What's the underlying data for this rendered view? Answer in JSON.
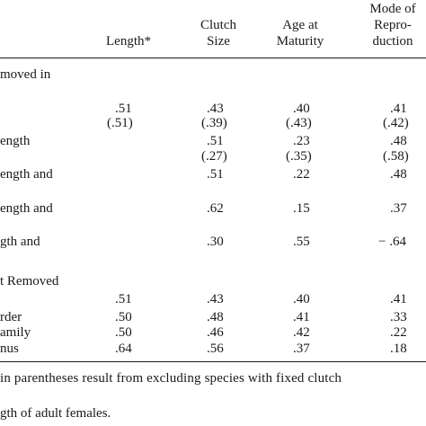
{
  "headers": {
    "length": "Length*",
    "clutch": [
      "Clutch",
      "Size"
    ],
    "age": [
      "Age at",
      "Maturity"
    ],
    "mode": [
      "Mode of",
      "Repro-",
      "duction"
    ]
  },
  "section1": {
    "title": "moved in",
    "rows": [
      {
        "label": "",
        "length": ".51",
        "clutch": ".43",
        "age": ".40",
        "mode": ".41"
      },
      {
        "label": "",
        "length": "(.51)",
        "clutch": "(.39)",
        "age": "(.43)",
        "mode": "(.42)"
      },
      {
        "label": "ength",
        "length": "",
        "clutch": ".51",
        "age": ".23",
        "mode": ".48"
      },
      {
        "label": "",
        "length": "",
        "clutch": "(.27)",
        "age": "(.35)",
        "mode": "(.58)"
      },
      {
        "label": "ength and",
        "length": "",
        "clutch": ".51",
        "age": ".22",
        "mode": ".48"
      },
      {
        "label": "ength and",
        "length": "",
        "clutch": ".62",
        "age": ".15",
        "mode": ".37"
      },
      {
        "label": "gth and",
        "length": "",
        "clutch": ".30",
        "age": ".55",
        "mode": "− .64"
      }
    ]
  },
  "section2": {
    "title": "t Removed",
    "rows": [
      {
        "label": "",
        "length": ".51",
        "clutch": ".43",
        "age": ".40",
        "mode": ".41"
      },
      {
        "label": "rder",
        "length": ".50",
        "clutch": ".48",
        "age": ".41",
        "mode": ".33"
      },
      {
        "label": "amily",
        "length": ".50",
        "clutch": ".46",
        "age": ".42",
        "mode": ".22"
      },
      {
        "label": "nus",
        "length": ".64",
        "clutch": ".56",
        "age": ".37",
        "mode": ".18"
      }
    ]
  },
  "footnotes": [
    "in parentheses result from excluding species with fixed clutch",
    "gth of adult females."
  ]
}
